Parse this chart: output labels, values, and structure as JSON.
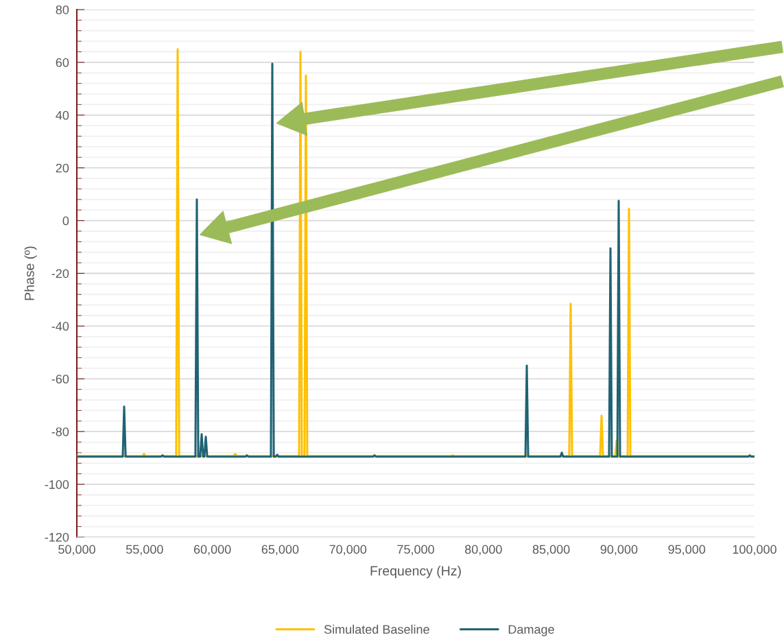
{
  "chart_data": {
    "type": "line",
    "xlabel": "Frequency (Hz)",
    "ylabel": "Phase (º)",
    "xlim": [
      50000,
      100000
    ],
    "xticks": [
      {
        "value": 50000,
        "label": "50,000"
      },
      {
        "value": 55000,
        "label": "55,000"
      },
      {
        "value": 60000,
        "label": "60,000"
      },
      {
        "value": 65000,
        "label": "65,000"
      },
      {
        "value": 70000,
        "label": "70,000"
      },
      {
        "value": 75000,
        "label": "75,000"
      },
      {
        "value": 80000,
        "label": "80,000"
      },
      {
        "value": 85000,
        "label": "85,000"
      },
      {
        "value": 90000,
        "label": "90,000"
      },
      {
        "value": 95000,
        "label": "95,000"
      },
      {
        "value": 100000,
        "label": "100,000"
      }
    ],
    "ylim": [
      -120,
      80
    ],
    "yticks": [
      -120,
      -100,
      -80,
      -60,
      -40,
      -20,
      0,
      20,
      40,
      60,
      80
    ],
    "grid": "y",
    "legend": "bottom",
    "marker": "none",
    "line_style": "solid",
    "series": [
      {
        "name": "Simulated Baseline",
        "color": "#ffc000",
        "x": [
          50000,
          54850,
          54960,
          55070,
          57330,
          57440,
          57550,
          61580,
          61690,
          61800,
          66400,
          66498,
          66600,
          66800,
          66903,
          67000,
          77620,
          77730,
          77840,
          86330,
          86437,
          86540,
          88610,
          88715,
          88820,
          89730,
          89828,
          89930,
          90640,
          90739,
          90840,
          100000
        ],
        "values": [
          -89.3,
          -89.3,
          -88.5,
          -89.3,
          -89.3,
          65,
          -89.3,
          -89.3,
          -88.5,
          -89.3,
          -89.3,
          64,
          -89.3,
          -89.3,
          55,
          -89.3,
          -89.3,
          -89,
          -89.3,
          -89.3,
          -31.5,
          -89.3,
          -89.3,
          -74,
          -89.3,
          -89.3,
          -83.5,
          -89.3,
          -89.3,
          4.5,
          -89.3,
          -89.3
        ]
      },
      {
        "name": "Damage",
        "color": "#1f6374",
        "x": [
          50000,
          53390,
          53492,
          53600,
          56220,
          56326,
          56430,
          58750,
          58856,
          58960,
          59100,
          59211,
          59320,
          59410,
          59514,
          59620,
          62450,
          62550,
          62650,
          64320,
          64423,
          64530,
          64680,
          64777,
          64880,
          71860,
          71964,
          72070,
          83100,
          83199,
          83300,
          85680,
          85780,
          85880,
          89270,
          89372,
          89470,
          89880,
          89980,
          90080,
          99550,
          99650,
          99750,
          100000
        ],
        "values": [
          -89.5,
          -89.5,
          -70.5,
          -89.5,
          -89.5,
          -89,
          -89.5,
          -89.5,
          8,
          -89.5,
          -89.5,
          -81,
          -89.5,
          -89.5,
          -82,
          -89.5,
          -89.5,
          -89,
          -89.5,
          -89.5,
          59.5,
          -89.5,
          -89.5,
          -88.8,
          -89.5,
          -89.5,
          -89,
          -89.5,
          -89.5,
          -55,
          -89.5,
          -89.5,
          -88,
          -89.5,
          -89.5,
          -10.5,
          -89.5,
          -89.5,
          7.5,
          -89.5,
          -89.5,
          -89,
          -89.5,
          -89.5
        ]
      }
    ]
  }
}
